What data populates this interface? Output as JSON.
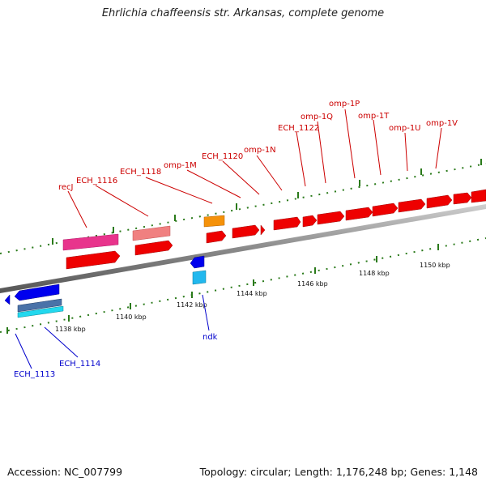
{
  "title": "Ehrlichia chaffeensis str. Arkansas, complete genome",
  "footer": {
    "accession": "Accession: NC_007799",
    "summary": "Topology: circular; Length: 1,176,248 bp; Genes: 1,148"
  },
  "colors": {
    "forward_label": "#cc0000",
    "reverse_label": "#0000cc",
    "backbone": "#888888",
    "tick": "#2a7a1a"
  },
  "kbp_ticks": [
    "1138 kbp",
    "1140 kbp",
    "1142 kbp",
    "1144 kbp",
    "1146 kbp",
    "1148 kbp",
    "1150 kbp"
  ],
  "forward_genes": [
    "recJ",
    "ECH_1116",
    "ECH_1118",
    "omp-1M",
    "ECH_1120",
    "omp-1N",
    "ECH_1122",
    "omp-1Q",
    "omp-1P",
    "omp-1T",
    "omp-1U",
    "omp-1V"
  ],
  "reverse_genes": [
    "ECH_1113",
    "ECH_1114",
    "ndk"
  ]
}
